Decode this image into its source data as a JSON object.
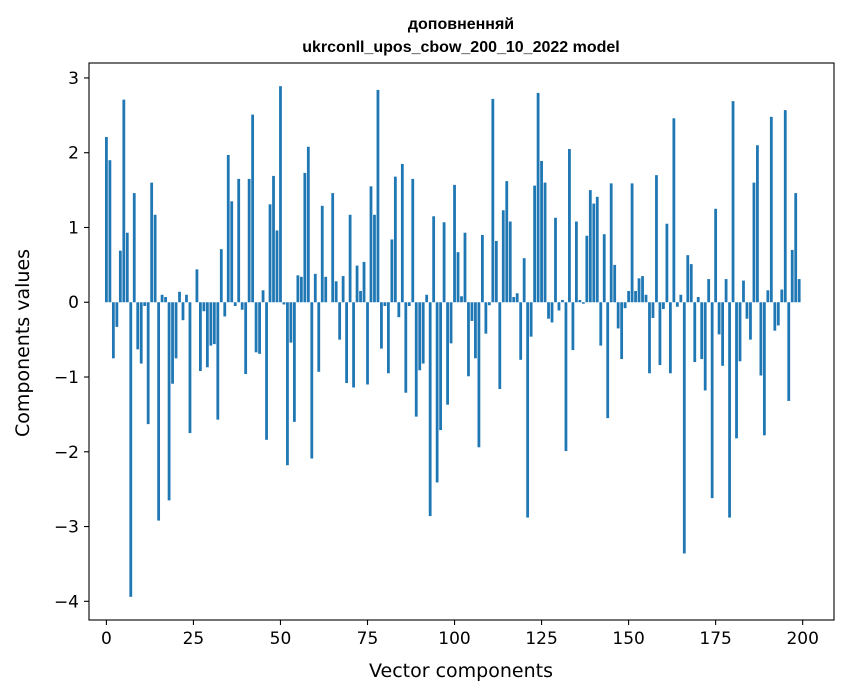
{
  "chart_data": {
    "type": "bar",
    "title_lines": [
      "доповненняй",
      "ukrconll_upos_cbow_200_10_2022 model"
    ],
    "xlabel": "Vector components",
    "ylabel": "Components values",
    "xlim": [
      -5,
      209
    ],
    "ylim": [
      -4.25,
      3.2
    ],
    "xticks": [
      0,
      25,
      50,
      75,
      100,
      125,
      150,
      175,
      200
    ],
    "yticks": [
      -4,
      -3,
      -2,
      -1,
      0,
      1,
      2,
      3
    ],
    "xtick_labels": [
      "0",
      "25",
      "50",
      "75",
      "100",
      "125",
      "150",
      "175",
      "200"
    ],
    "ytick_labels": [
      "−4",
      "−3",
      "−2",
      "−1",
      "0",
      "1",
      "2",
      "3"
    ],
    "bar_color": "#1f77b4",
    "grid": false,
    "legend": "none",
    "x": [
      0,
      1,
      2,
      3,
      4,
      5,
      6,
      7,
      8,
      9,
      10,
      11,
      12,
      13,
      14,
      15,
      16,
      17,
      18,
      19,
      20,
      21,
      22,
      23,
      24,
      25,
      26,
      27,
      28,
      29,
      30,
      31,
      32,
      33,
      34,
      35,
      36,
      37,
      38,
      39,
      40,
      41,
      42,
      43,
      44,
      45,
      46,
      47,
      48,
      49,
      50,
      51,
      52,
      53,
      54,
      55,
      56,
      57,
      58,
      59,
      60,
      61,
      62,
      63,
      64,
      65,
      66,
      67,
      68,
      69,
      70,
      71,
      72,
      73,
      74,
      75,
      76,
      77,
      78,
      79,
      80,
      81,
      82,
      83,
      84,
      85,
      86,
      87,
      88,
      89,
      90,
      91,
      92,
      93,
      94,
      95,
      96,
      97,
      98,
      99,
      100,
      101,
      102,
      103,
      104,
      105,
      106,
      107,
      108,
      109,
      110,
      111,
      112,
      113,
      114,
      115,
      116,
      117,
      118,
      119,
      120,
      121,
      122,
      123,
      124,
      125,
      126,
      127,
      128,
      129,
      130,
      131,
      132,
      133,
      134,
      135,
      136,
      137,
      138,
      139,
      140,
      141,
      142,
      143,
      144,
      145,
      146,
      147,
      148,
      149,
      150,
      151,
      152,
      153,
      154,
      155,
      156,
      157,
      158,
      159,
      160,
      161,
      162,
      163,
      164,
      165,
      166,
      167,
      168,
      169,
      170,
      171,
      172,
      173,
      174,
      175,
      176,
      177,
      178,
      179,
      180,
      181,
      182,
      183,
      184,
      185,
      186,
      187,
      188,
      189,
      190,
      191,
      192,
      193,
      194,
      195,
      196,
      197,
      198,
      199
    ],
    "values": [
      2.21,
      1.9,
      -0.75,
      -0.33,
      0.69,
      2.71,
      0.93,
      -3.94,
      1.46,
      -0.63,
      -0.82,
      -0.05,
      -1.63,
      1.6,
      1.17,
      -2.92,
      0.1,
      0.07,
      -2.65,
      -1.09,
      -0.75,
      0.14,
      -0.24,
      0.1,
      -1.75,
      0.0,
      0.44,
      -0.92,
      -0.12,
      -0.87,
      -0.58,
      -0.56,
      -1.57,
      0.71,
      -0.19,
      1.97,
      1.35,
      -0.05,
      1.65,
      -0.1,
      -0.96,
      1.65,
      2.51,
      -0.67,
      -0.69,
      0.16,
      -1.84,
      1.31,
      1.69,
      0.96,
      2.89,
      -0.03,
      -2.18,
      -0.54,
      -1.6,
      0.36,
      0.34,
      1.73,
      2.08,
      -2.09,
      0.38,
      -0.93,
      1.29,
      0.34,
      0.0,
      1.46,
      0.28,
      -0.5,
      0.35,
      -1.08,
      1.17,
      -1.14,
      0.49,
      0.15,
      0.54,
      -1.1,
      1.55,
      1.17,
      2.84,
      -0.62,
      -0.05,
      -0.95,
      0.84,
      1.68,
      -0.2,
      1.85,
      -1.21,
      -0.05,
      1.65,
      -1.53,
      -0.91,
      -0.82,
      0.1,
      -2.86,
      1.15,
      -2.41,
      -1.71,
      1.07,
      -1.37,
      -0.55,
      1.57,
      0.67,
      0.08,
      0.93,
      -0.99,
      -0.25,
      -0.75,
      -1.94,
      0.9,
      -0.42,
      -0.04,
      2.72,
      0.82,
      -1.16,
      1.23,
      1.62,
      1.08,
      0.07,
      0.12,
      -0.77,
      0.59,
      -2.88,
      -0.46,
      1.56,
      2.8,
      1.89,
      1.6,
      -0.22,
      -0.27,
      1.13,
      -0.11,
      0.03,
      -1.99,
      2.05,
      -0.64,
      1.08,
      0.03,
      -0.02,
      0.89,
      1.5,
      1.32,
      1.41,
      -0.58,
      0.91,
      -1.55,
      1.59,
      0.5,
      -0.35,
      -0.76,
      -0.08,
      0.15,
      1.59,
      0.15,
      0.32,
      0.35,
      0.1,
      -0.95,
      -0.21,
      1.7,
      -0.84,
      -0.09,
      1.05,
      -0.95,
      2.46,
      -0.06,
      0.1,
      -3.36,
      0.63,
      0.51,
      -0.8,
      0.07,
      -0.76,
      -1.18,
      0.31,
      -2.62,
      1.25,
      -0.43,
      -0.85,
      0.31,
      -2.88,
      2.69,
      -1.82,
      -0.79,
      0.29,
      -0.22,
      -0.5,
      1.6,
      2.1,
      -0.98,
      -1.78,
      0.16,
      2.48,
      -0.38,
      -0.31,
      0.17,
      2.57,
      -1.32,
      0.7,
      1.46,
      0.31
    ]
  }
}
